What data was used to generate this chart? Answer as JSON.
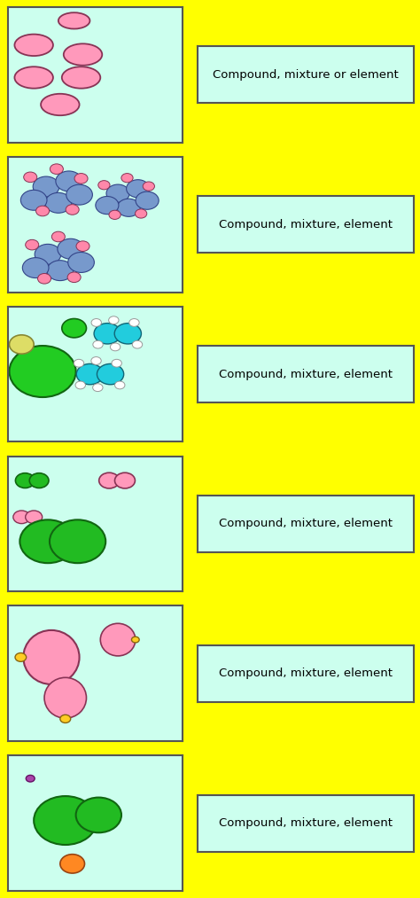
{
  "background_color": "#FFFF00",
  "box_color": "#CCFFEE",
  "border_color": "#555555",
  "label_box_color": "#CCFFEE",
  "rows": [
    {
      "label": "Compound, mixture or element",
      "scene": "pink_ellipses"
    },
    {
      "label": "Compound, mixture, element",
      "scene": "blue_pink_molecules"
    },
    {
      "label": "Compound, mixture, element",
      "scene": "green_cyan_water"
    },
    {
      "label": "Compound, mixture, element",
      "scene": "green_pink_blobs"
    },
    {
      "label": "Compound, mixture, element",
      "scene": "pink_large_small"
    },
    {
      "label": "Compound, mixture, element",
      "scene": "green_orange_purple"
    }
  ],
  "fig_width": 4.74,
  "fig_height": 10.13,
  "dpi": 100
}
